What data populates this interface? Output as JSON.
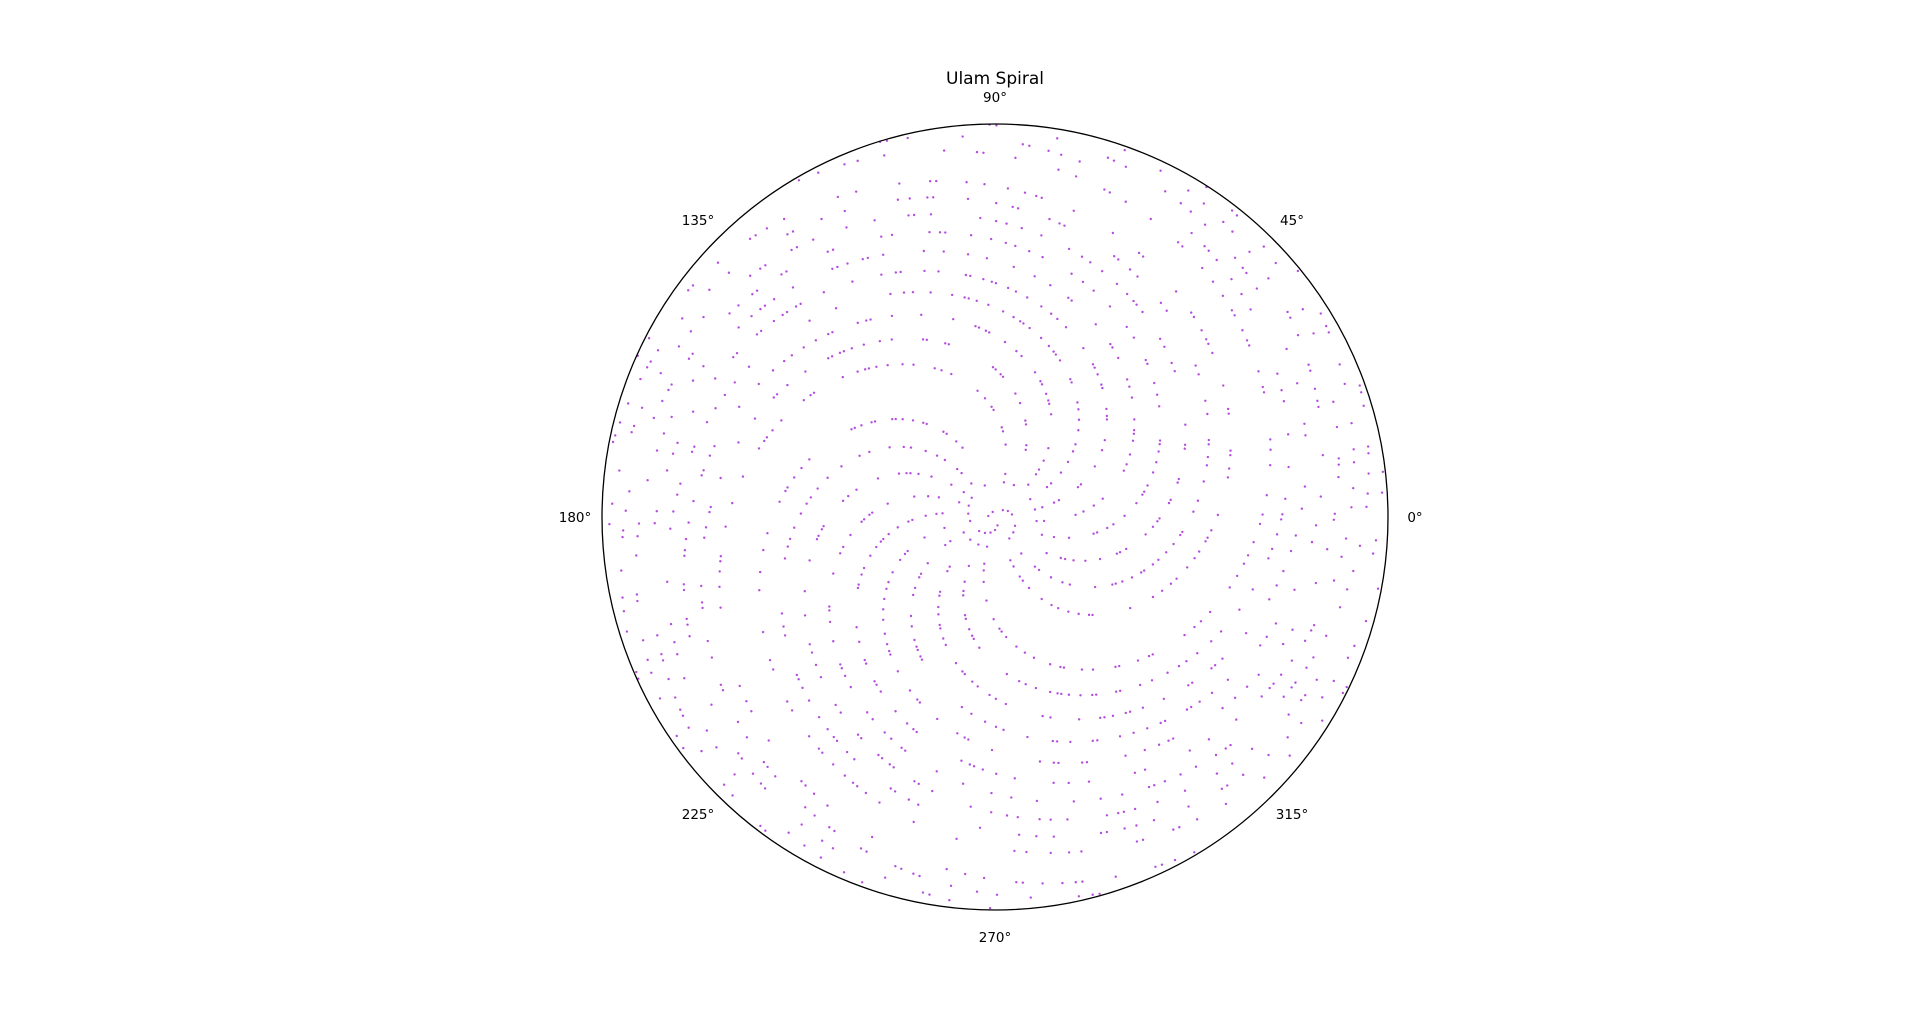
{
  "chart_data": {
    "type": "scatter",
    "projection": "polar",
    "title": "Ulam Spiral",
    "xlabel": "",
    "ylabel": "",
    "grid": false,
    "legend": "none",
    "theta_tick_labels": [
      "0°",
      "45°",
      "90°",
      "135°",
      "180°",
      "225°",
      "270°",
      "315°"
    ],
    "r_tick_labels": [],
    "point_rule": "Each point is a prime p plotted at angle theta = p radians and radius r = sqrt(p); all primes up to 9973 are shown.",
    "n_max": 9973,
    "rlim": [
      0,
      100
    ],
    "series": [
      {
        "name": "",
        "color": "#9400d3",
        "alpha": 0.7,
        "marker": "point"
      }
    ]
  }
}
